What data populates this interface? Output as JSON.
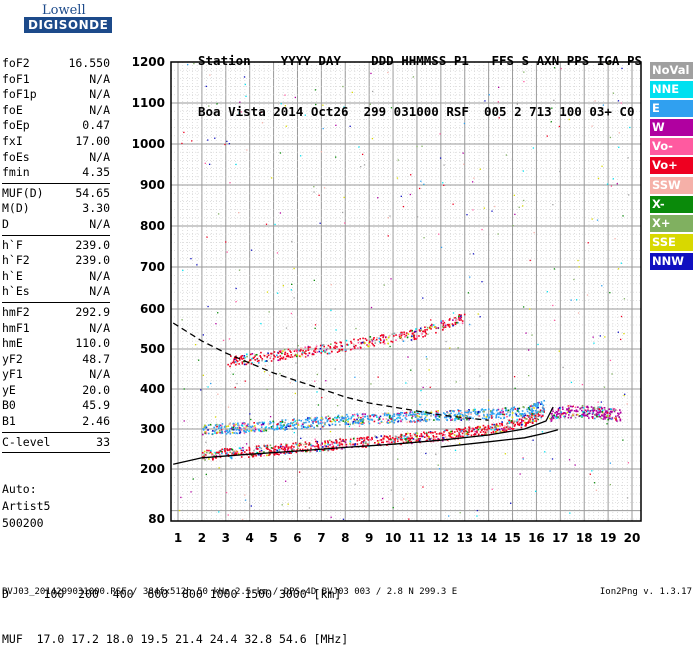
{
  "logo": {
    "line1": "Lowell",
    "line2": "DIGISONDE"
  },
  "header": {
    "row1": "Station    YYYY DAY    DDD HHMMSS P1   FFS S AXN PPS IGA PS",
    "row2": "Boa Vista 2014 Oct26  299 031000 RSF  005 2 713 100 03+ C0"
  },
  "params_group1": [
    {
      "k": "foF2",
      "v": "16.550"
    },
    {
      "k": "foF1",
      "v": "N/A"
    },
    {
      "k": "foF1p",
      "v": "N/A"
    },
    {
      "k": "foE",
      "v": "N/A"
    },
    {
      "k": "foEp",
      "v": "0.47"
    },
    {
      "k": "fxI",
      "v": "17.00"
    },
    {
      "k": "foEs",
      "v": "N/A"
    },
    {
      "k": "fmin",
      "v": "4.35"
    }
  ],
  "params_group2": [
    {
      "k": "MUF(D)",
      "v": "54.65"
    },
    {
      "k": "M(D)",
      "v": "3.30"
    },
    {
      "k": "D",
      "v": "N/A"
    }
  ],
  "params_group3": [
    {
      "k": "h`F",
      "v": "239.0"
    },
    {
      "k": "h`F2",
      "v": "239.0"
    },
    {
      "k": "h`E",
      "v": "N/A"
    },
    {
      "k": "h`Es",
      "v": "N/A"
    }
  ],
  "params_group4": [
    {
      "k": "hmF2",
      "v": "292.9"
    },
    {
      "k": "hmF1",
      "v": "N/A"
    },
    {
      "k": "hmE",
      "v": "110.0"
    },
    {
      "k": "yF2",
      "v": "48.7"
    },
    {
      "k": "yF1",
      "v": "N/A"
    },
    {
      "k": "yE",
      "v": "20.0"
    },
    {
      "k": "B0",
      "v": "45.9"
    },
    {
      "k": "B1",
      "v": "2.46"
    }
  ],
  "params_group5": [
    {
      "k": "C-level",
      "v": "33"
    }
  ],
  "auto": {
    "line1": "Auto:",
    "line2": "Artist5",
    "line3": "500200"
  },
  "legend": [
    {
      "label": "NoVal",
      "color": "#a0a0a0"
    },
    {
      "label": "NNE",
      "color": "#00e0f0"
    },
    {
      "label": "E",
      "color": "#30a0f0"
    },
    {
      "label": "W",
      "color": "#b000a0"
    },
    {
      "label": "Vo-",
      "color": "#ff5aa0"
    },
    {
      "label": "Vo+",
      "color": "#ee0020"
    },
    {
      "label": "SSW",
      "color": "#f5b0a8"
    },
    {
      "label": "X-",
      "color": "#0a8a0a"
    },
    {
      "label": "X+",
      "color": "#80b060"
    },
    {
      "label": "SSE",
      "color": "#d8d800"
    },
    {
      "label": "NNW",
      "color": "#1010c0"
    }
  ],
  "muf_table": {
    "row1": "D     100  200  400  600  800 1000 1500 3000 [km]",
    "row2": "MUF  17.0 17.2 18.0 19.5 21.4 24.4 32.8 54.6 [MHz]"
  },
  "footer": "BVJ03_2014299031000.RSF / 384fx512h 50 kHz 2.5 km / DPS-4D BVJ03 003 / 2.8 N 299.3 E",
  "version": "Ion2Png v. 1.3.17",
  "chart_data": {
    "type": "scatter",
    "x_ticks": [
      1,
      2,
      3,
      4,
      5,
      6,
      7,
      8,
      9,
      10,
      11,
      12,
      13,
      14,
      15,
      16,
      17,
      18,
      19,
      20
    ],
    "y_ticks": [
      80,
      200,
      300,
      400,
      500,
      600,
      700,
      800,
      900,
      1000,
      1100,
      1200
    ],
    "xlim": [
      0.8,
      20.2
    ],
    "ylim": [
      80,
      1200
    ],
    "grid": true,
    "legend_position": "right",
    "echo_traces": [
      {
        "name": "F2 lower trace",
        "color": "#ee0020",
        "x": [
          2.0,
          4,
          6,
          8,
          10,
          12,
          14,
          15.5,
          16.3
        ],
        "y": [
          235,
          245,
          255,
          265,
          275,
          285,
          300,
          320,
          345
        ]
      },
      {
        "name": "F2 upper trace",
        "color": "#30a0f0",
        "x": [
          2.0,
          4,
          6,
          8,
          10,
          12,
          14,
          15.5,
          16.3
        ],
        "y": [
          300,
          305,
          315,
          325,
          330,
          335,
          340,
          345,
          360
        ]
      },
      {
        "name": "second hop",
        "color": "#ee0020",
        "x": [
          3.0,
          5,
          7,
          9,
          11,
          13
        ],
        "y": [
          470,
          485,
          500,
          520,
          540,
          580
        ]
      },
      {
        "name": "X trace",
        "color": "#b000a0",
        "x": [
          16.5,
          17,
          18,
          19,
          19.5
        ],
        "y": [
          335,
          345,
          345,
          340,
          335
        ]
      }
    ],
    "profile_curves": [
      {
        "name": "lower profile",
        "style": "solid",
        "x": [
          0.8,
          2,
          4,
          6,
          8,
          10,
          12,
          14,
          15.5,
          16.4,
          16.7
        ],
        "y": [
          212,
          228,
          237,
          245,
          254,
          262,
          272,
          285,
          300,
          320,
          355
        ]
      },
      {
        "name": "model profile",
        "style": "solid",
        "x": [
          12,
          14,
          15.5,
          16.4,
          16.9
        ],
        "y": [
          255,
          268,
          278,
          290,
          298
        ]
      },
      {
        "name": "dashed profile",
        "style": "dashed",
        "x": [
          0.8,
          2,
          3,
          4,
          5,
          6,
          7,
          8,
          9,
          10,
          11,
          12,
          13,
          14
        ],
        "y": [
          565,
          520,
          490,
          465,
          440,
          420,
          400,
          380,
          365,
          355,
          345,
          335,
          328,
          322
        ]
      }
    ]
  }
}
